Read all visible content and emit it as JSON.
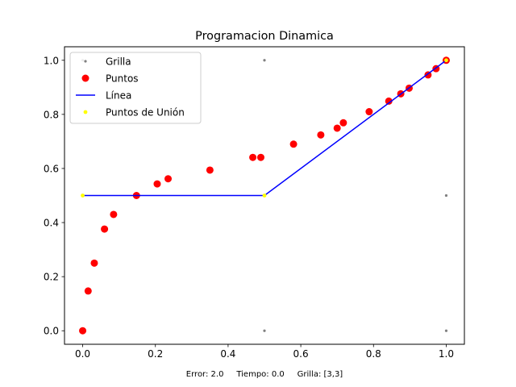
{
  "chart_data": {
    "type": "scatter",
    "title": "Programacion Dinamica",
    "xlim": [
      -0.05,
      1.05
    ],
    "ylim": [
      -0.05,
      1.05
    ],
    "x_ticks": [
      0.0,
      0.2,
      0.4,
      0.6,
      0.8,
      1.0
    ],
    "y_ticks": [
      0.0,
      0.2,
      0.4,
      0.6,
      0.8,
      1.0
    ],
    "x_tick_labels": [
      "0.0",
      "0.2",
      "0.4",
      "0.6",
      "0.8",
      "1.0"
    ],
    "y_tick_labels": [
      "0.0",
      "0.2",
      "0.4",
      "0.6",
      "0.8",
      "1.0"
    ],
    "grid": false,
    "legend_position": "top-left",
    "footer": "Error: 2.0     Tiempo: 0.0     Grilla: [3,3]",
    "series": [
      {
        "name": "Grilla",
        "kind": "scatter",
        "color": "#808080",
        "points": [
          [
            0.0,
            0.0
          ],
          [
            0.0,
            0.5
          ],
          [
            0.0,
            1.0
          ],
          [
            0.5,
            0.0
          ],
          [
            0.5,
            0.5
          ],
          [
            0.5,
            1.0
          ],
          [
            1.0,
            0.0
          ],
          [
            1.0,
            0.5
          ],
          [
            1.0,
            1.0
          ]
        ]
      },
      {
        "name": "Puntos",
        "kind": "scatter",
        "color": "#ff0000",
        "points": [
          [
            0.0,
            0.0
          ],
          [
            0.015,
            0.147
          ],
          [
            0.032,
            0.25
          ],
          [
            0.06,
            0.376
          ],
          [
            0.085,
            0.43
          ],
          [
            0.148,
            0.5
          ],
          [
            0.205,
            0.543
          ],
          [
            0.235,
            0.562
          ],
          [
            0.35,
            0.594
          ],
          [
            0.468,
            0.641
          ],
          [
            0.49,
            0.641
          ],
          [
            0.58,
            0.69
          ],
          [
            0.655,
            0.724
          ],
          [
            0.7,
            0.749
          ],
          [
            0.717,
            0.769
          ],
          [
            0.788,
            0.81
          ],
          [
            0.842,
            0.849
          ],
          [
            0.875,
            0.876
          ],
          [
            0.898,
            0.897
          ],
          [
            0.95,
            0.946
          ],
          [
            0.972,
            0.969
          ],
          [
            1.0,
            1.0
          ]
        ]
      },
      {
        "name": "Línea",
        "kind": "line",
        "color": "#0000ff",
        "points": [
          [
            0.0,
            0.5
          ],
          [
            0.5,
            0.5
          ],
          [
            1.0,
            1.0
          ]
        ]
      },
      {
        "name": "Puntos de Unión",
        "kind": "scatter",
        "color": "#ffff00",
        "points": [
          [
            0.0,
            0.5
          ],
          [
            0.5,
            0.5
          ],
          [
            1.0,
            1.0
          ]
        ]
      }
    ]
  }
}
